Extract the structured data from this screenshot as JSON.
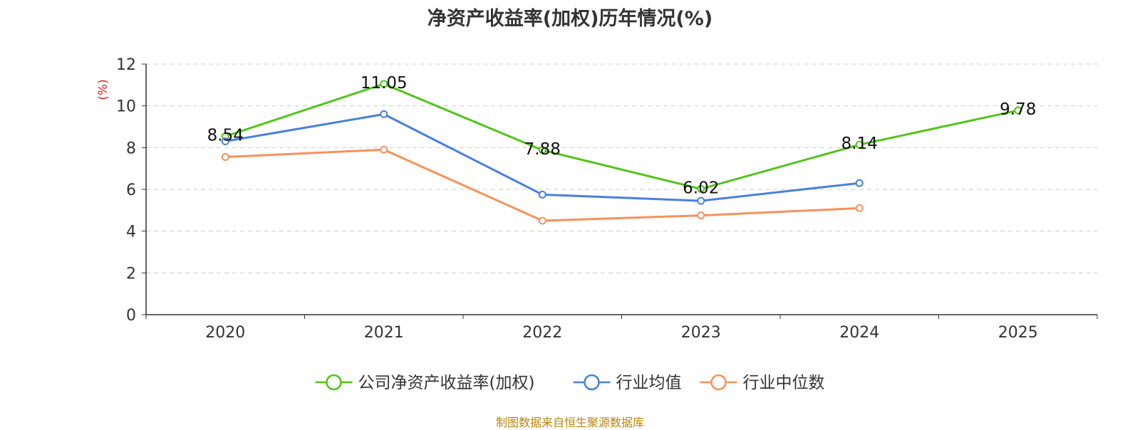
{
  "title": "净资产收益率(加权)历年情况(%)",
  "source_note": "制图数据来自恒生聚源数据库",
  "chart_data": {
    "type": "line",
    "title": "净资产收益率(加权)历年情况(%)",
    "ylabel": "(%)",
    "xlabel": "",
    "categories": [
      "2020",
      "2021",
      "2022",
      "2023",
      "2024",
      "2025"
    ],
    "ylim": [
      0,
      12
    ],
    "yticks": [
      0,
      2,
      4,
      6,
      8,
      10,
      12
    ],
    "grid": true,
    "legend_position": "bottom",
    "series": [
      {
        "name": "公司净资产收益率(加权)",
        "color": "#52c41a",
        "labels": true,
        "values": [
          8.54,
          11.05,
          7.88,
          6.02,
          8.14,
          9.78
        ],
        "value_labels": [
          "8.54",
          "11.05",
          "7.88",
          "6.02",
          "8.14",
          "9.78"
        ]
      },
      {
        "name": "行业均值",
        "color": "#4a7fdc",
        "labels": false,
        "values": [
          8.3,
          9.6,
          5.75,
          5.45,
          6.3,
          null
        ]
      },
      {
        "name": "行业中位数",
        "color": "#f79159",
        "labels": false,
        "values": [
          7.55,
          7.9,
          4.5,
          4.75,
          5.1,
          null
        ]
      }
    ]
  },
  "colors": {
    "axis": "#333333",
    "grid": "#cccccc",
    "ylabel": "#e02020",
    "source": "#b8860b"
  }
}
